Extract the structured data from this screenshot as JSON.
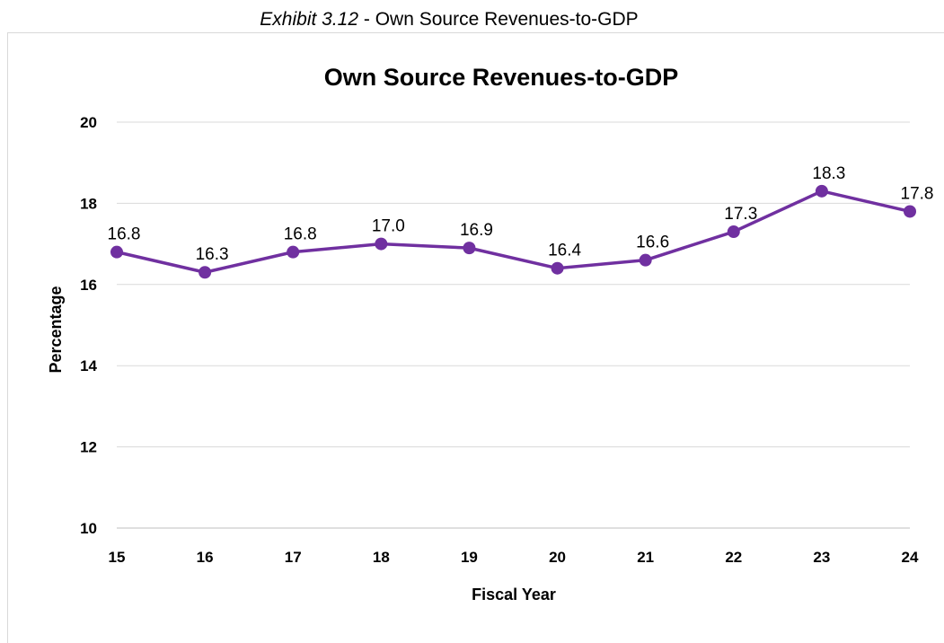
{
  "caption": {
    "label": "Exhibit 3.12",
    "separator": " - ",
    "text": "Own Source Revenues-to-GDP"
  },
  "chart_data": {
    "type": "line",
    "title": "Own Source Revenues-to-GDP",
    "xlabel": "Fiscal Year",
    "ylabel": "Percentage",
    "categories": [
      "15",
      "16",
      "17",
      "18",
      "19",
      "20",
      "21",
      "22",
      "23",
      "24"
    ],
    "values": [
      16.8,
      16.3,
      16.8,
      17.0,
      16.9,
      16.4,
      16.6,
      17.3,
      18.3,
      17.8
    ],
    "data_labels": [
      "16.8",
      "16.3",
      "16.8",
      "17.0",
      "16.9",
      "16.4",
      "16.6",
      "17.3",
      "18.3",
      "17.8"
    ],
    "ylim": [
      10,
      20
    ],
    "yticks": [
      10,
      12,
      14,
      16,
      18,
      20
    ],
    "grid": true,
    "legend": "none",
    "series_color": "#7030a0"
  }
}
